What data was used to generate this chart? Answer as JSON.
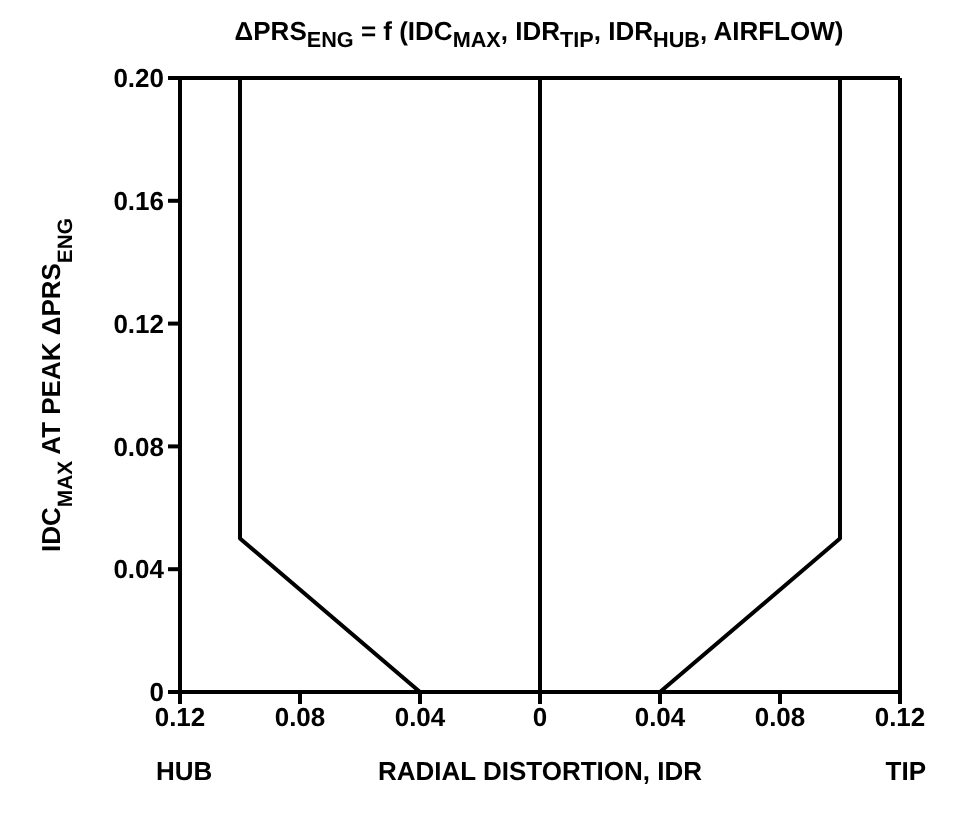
{
  "chart_data": {
    "type": "line",
    "title": "ΔPRS$_{ENG}$ = f (IDC$_{MAX}$, IDR$_{TIP}$, IDR$_{HUB}$, AIRFLOW)",
    "xlabel": "RADIAL DISTORTION, IDR",
    "ylabel": "IDC$_{MAX}$ AT PEAK ΔPRS$_{ENG}$",
    "annotations": [
      "HUB",
      "TIP"
    ],
    "series": [
      {
        "color": "#000000",
        "x": [
          -0.04,
          -0.1,
          -0.1
        ],
        "values": [
          0,
          0.05,
          0.2
        ]
      },
      {
        "color": "#000000",
        "x": [
          0.04,
          0.1,
          0.1
        ],
        "values": [
          0,
          0.05,
          0.2
        ]
      }
    ],
    "xlim": [
      -0.12,
      0.12
    ],
    "xticks": [
      {
        "value": -0.12,
        "label": "0.12"
      },
      {
        "value": -0.08,
        "label": "0.08"
      },
      {
        "value": -0.04,
        "label": "0.04"
      },
      0,
      0.04,
      0.08,
      0.12
    ],
    "ylim": [
      0,
      0.2
    ],
    "yticks": [
      0,
      0.04,
      0.08,
      0.12,
      0.16,
      {
        "value": 0.2,
        "label": "0.20"
      }
    ],
    "ref_lines": [
      {
        "axis": "x",
        "value": 0,
        "color": "#000000"
      }
    ],
    "marker": "none",
    "line_style": "solid"
  }
}
